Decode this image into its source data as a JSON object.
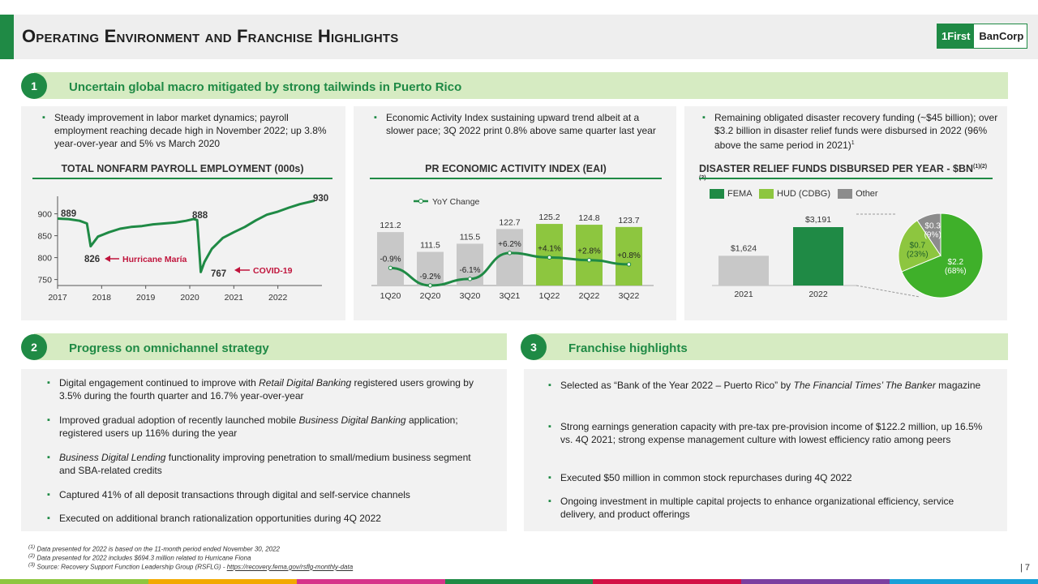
{
  "title": "Operating Environment and Franchise Highlights",
  "logo": {
    "mark": "1First",
    "text": "BanCorp"
  },
  "sections": {
    "s1": {
      "num": "1",
      "title": "Uncertain global macro mitigated by strong tailwinds in Puerto Rico"
    },
    "s2": {
      "num": "2",
      "title": "Progress on omnichannel strategy"
    },
    "s3": {
      "num": "3",
      "title": "Franchise highlights"
    }
  },
  "payroll": {
    "bullet": "Steady improvement in labor market dynamics; payroll employment reaching decade high in November 2022; up 3.8% year-over-year and 5% vs March 2020",
    "chart_title": "TOTAL NONFARM PAYROLL EMPLOYMENT (000s)",
    "labels": {
      "v889": "889",
      "v888": "888",
      "v826": "826",
      "v767": "767",
      "v930": "930"
    },
    "annotations": {
      "maria": "Hurricane María",
      "covid": "COVID-19"
    },
    "y_ticks": [
      "900",
      "850",
      "800",
      "750"
    ],
    "x_ticks": [
      "2017",
      "2018",
      "2019",
      "2020",
      "2021",
      "2022"
    ]
  },
  "eai": {
    "bullet": "Economic Activity Index sustaining upward trend albeit at a slower pace; 3Q 2022 print 0.8% above same quarter last year",
    "chart_title": "PR ECONOMIC ACTIVITY INDEX (EAI)",
    "legend": "YoY Change"
  },
  "disaster": {
    "bullet": "Remaining obligated disaster recovery funding (~$45 billion); over $3.2 billion in disaster relief funds were disbursed in 2022 (96% above the same period in 2021)",
    "bullet_sup": "1",
    "chart_title": "DISASTER RELIEF FUNDS DISBURSED PER YEAR - $BN",
    "chart_title_sup": "(1)(2)(3)",
    "legend": [
      "FEMA",
      "HUD (CDBG)",
      "Other"
    ],
    "bars": [
      {
        "label": "2021",
        "value_label": "$1,624"
      },
      {
        "label": "2022",
        "value_label": "$3,191"
      }
    ],
    "pie": [
      {
        "amount": "$2.2",
        "pct": "(68%)"
      },
      {
        "amount": "$0.7",
        "pct": "(23%)"
      },
      {
        "amount": "$0.3",
        "pct": "(9%)"
      }
    ]
  },
  "omnichannel": [
    {
      "pre": "Digital engagement continued to improve with ",
      "em": "Retail Digital Banking",
      "post": " registered users growing by 3.5% during the fourth quarter and 16.7% year-over-year"
    },
    {
      "pre": "Improved gradual adoption of recently launched mobile ",
      "em": "Business Digital Banking",
      "post": " application; registered users up 116% during the year"
    },
    {
      "pre": "",
      "em": "Business Digital Lending",
      "post": " functionality improving penetration to small/medium business segment and SBA-related credits"
    },
    {
      "pre": "Captured 41% of all deposit transactions through digital and self-service channels",
      "em": "",
      "post": ""
    },
    {
      "pre": "Executed on additional branch rationalization opportunities during 4Q 2022",
      "em": "",
      "post": ""
    }
  ],
  "franchise": [
    {
      "pre": "Selected as “Bank of the Year 2022 – Puerto Rico” by ",
      "em": "The Financial Times’ The Banker",
      "post": " magazine"
    },
    {
      "pre": "Strong earnings generation capacity with pre-tax pre-provision income of $122.2 million, up 16.5% vs. 4Q 2021; strong expense management culture with lowest efficiency ratio among peers",
      "em": "",
      "post": ""
    },
    {
      "pre": "Executed $50 million in common stock repurchases during 4Q 2022",
      "em": "",
      "post": ""
    },
    {
      "pre": "Ongoing investment in multiple capital projects to enhance organizational efficiency, service delivery, and product offerings",
      "em": "",
      "post": ""
    }
  ],
  "footnotes": {
    "f1": "Data presented for 2022 is based on the 11-month period ended November 30, 2022",
    "f2": "Data presented for 2022 includes $694.3 million related to Hurricane Fiona",
    "f3": "Source: Recovery Support Function Leadership Group (RSFLG) - ",
    "f3_link": "https://recovery.fema.gov/rsflg-monthly-data"
  },
  "page_number": "| 7",
  "colors": {
    "green_dark": "#1f8a45",
    "green_mid": "#8dc63f",
    "green_bright": "#3fb02a",
    "gray": "#8c8c8c",
    "bar_gray": "#c8c8c8",
    "section_bar": "#d6ebc2",
    "annotation_red": "#c0143c"
  },
  "chart_data": [
    {
      "type": "line",
      "title": "TOTAL NONFARM PAYROLL EMPLOYMENT (000s)",
      "ylim": [
        740,
        940
      ],
      "yticks": [
        750,
        800,
        850,
        900
      ],
      "x": [
        "2017-01",
        "2017-04",
        "2017-07",
        "2017-09",
        "2017-10",
        "2017-12",
        "2018-03",
        "2018-06",
        "2018-09",
        "2018-12",
        "2019-03",
        "2019-06",
        "2019-09",
        "2019-12",
        "2020-02",
        "2020-03",
        "2020-04",
        "2020-05",
        "2020-07",
        "2020-10",
        "2021-01",
        "2021-04",
        "2021-07",
        "2021-10",
        "2022-01",
        "2022-04",
        "2022-07",
        "2022-09",
        "2022-11"
      ],
      "values": [
        889,
        888,
        884,
        878,
        826,
        848,
        858,
        866,
        870,
        872,
        876,
        878,
        880,
        884,
        888,
        886,
        767,
        790,
        820,
        845,
        858,
        870,
        885,
        898,
        905,
        914,
        922,
        926,
        930
      ],
      "annotations": [
        {
          "text": "Hurricane María",
          "x": "2017-10",
          "y": 826
        },
        {
          "text": "COVID-19",
          "x": "2020-04",
          "y": 767
        }
      ]
    },
    {
      "type": "bar",
      "title": "PR ECONOMIC ACTIVITY INDEX (EAI)",
      "categories": [
        "1Q20",
        "2Q20",
        "3Q20",
        "3Q21",
        "1Q22",
        "2Q22",
        "3Q22"
      ],
      "series": [
        {
          "values": [
            121.2,
            111.5,
            115.5,
            122.7,
            125.2,
            124.8,
            123.7
          ]
        },
        {
          "name": "YoY Change",
          "type": "line",
          "values": [
            -0.9,
            -9.2,
            -6.1,
            6.2,
            4.1,
            2.8,
            0.8
          ],
          "labels": [
            "-0.9%",
            "-9.2%",
            "-6.1%",
            "+6.2%",
            "+4.1%",
            "+2.8%",
            "+0.8%"
          ]
        }
      ]
    },
    {
      "type": "bar",
      "title": "DISASTER RELIEF FUNDS DISBURSED PER YEAR - $BN",
      "categories": [
        "2021",
        "2022"
      ],
      "values": [
        1624,
        3191
      ],
      "value_labels": [
        "$1,624",
        "$3,191"
      ]
    },
    {
      "type": "pie",
      "categories": [
        "FEMA",
        "HUD (CDBG)",
        "Other"
      ],
      "values": [
        2.2,
        0.7,
        0.3
      ],
      "percents": [
        68,
        23,
        9
      ]
    }
  ]
}
